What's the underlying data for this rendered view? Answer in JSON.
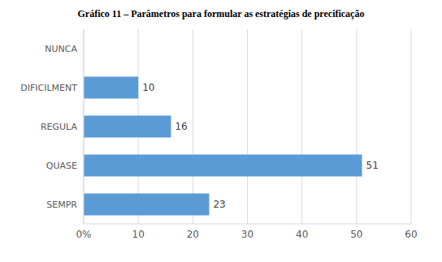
{
  "chart_data": {
    "type": "bar",
    "title": "Gráfico 11 – Parâmetros para formular as estratégias de precificação",
    "orientation": "horizontal",
    "categories": [
      "NUNCA",
      "DIFICILMENT",
      "REGULA",
      "QUASE",
      "SEMPR"
    ],
    "values": [
      null,
      10,
      16,
      51,
      23
    ],
    "color": "#5b9bd5",
    "xlim": [
      0,
      60
    ],
    "xticks": [
      {
        "value": 0,
        "label": "0%"
      },
      10,
      20,
      30,
      40,
      50,
      60
    ],
    "grid": true,
    "data_labels": true
  }
}
